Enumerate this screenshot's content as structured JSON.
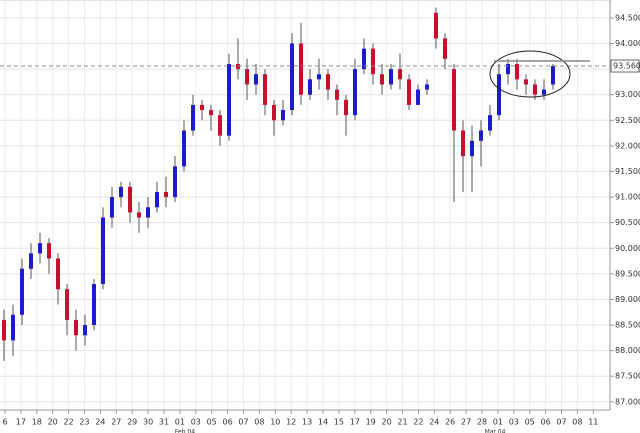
{
  "chart_data": {
    "type": "candlestick",
    "colors": {
      "up": "#1c1ccc",
      "down": "#c8102e",
      "wick": "#555555"
    },
    "grid": true,
    "ylim": [
      86.84,
      94.85
    ],
    "yticks": [
      {
        "value": 87.0,
        "label": "87.000"
      },
      {
        "value": 87.5,
        "label": "87.500"
      },
      {
        "value": 88.0,
        "label": "88.000"
      },
      {
        "value": 88.5,
        "label": "88.500"
      },
      {
        "value": 89.0,
        "label": "89.000"
      },
      {
        "value": 89.5,
        "label": "89.500"
      },
      {
        "value": 90.0,
        "label": "90.000"
      },
      {
        "value": 90.5,
        "label": "90.500"
      },
      {
        "value": 91.0,
        "label": "91.000"
      },
      {
        "value": 91.5,
        "label": "91.500"
      },
      {
        "value": 92.0,
        "label": "92.000"
      },
      {
        "value": 92.5,
        "label": "92.500"
      },
      {
        "value": 93.0,
        "label": "93.000"
      },
      {
        "value": 93.5,
        "label": "93.500"
      },
      {
        "value": 94.0,
        "label": "94.000"
      },
      {
        "value": 94.5,
        "label": "94.500"
      }
    ],
    "current_price": {
      "value": 93.56,
      "label": "93.560"
    },
    "xlabels": [
      "6",
      "17",
      "18",
      "20",
      "22",
      "23",
      "24",
      "27",
      "29",
      "30",
      "31",
      "01",
      "03",
      "05",
      "06",
      "07",
      "08",
      "10",
      "12",
      "13",
      "14",
      "15",
      "17",
      "19",
      "20",
      "21",
      "22",
      "24",
      "26",
      "27",
      "28",
      "01",
      "03",
      "05",
      "06",
      "07",
      "08",
      "11"
    ],
    "month_labels": [
      "Feb 04",
      "Mar 04"
    ],
    "series": {
      "open": [
        88.6,
        88.2,
        88.7,
        89.6,
        89.9,
        90.1,
        89.8,
        89.2,
        88.6,
        88.3,
        88.5,
        89.3,
        90.6,
        91.0,
        91.2,
        90.7,
        90.6,
        90.8,
        91.1,
        91.0,
        91.6,
        92.3,
        92.8,
        92.7,
        92.6,
        92.2,
        93.6,
        93.5,
        93.2,
        93.4,
        92.8,
        92.5,
        92.7,
        94.0,
        93.0,
        93.3,
        93.4,
        93.1,
        92.9,
        92.6,
        93.5,
        93.9,
        93.4,
        93.2,
        93.5,
        93.3,
        92.8,
        93.1,
        94.6,
        94.1,
        93.5,
        92.3,
        91.8,
        92.1,
        92.3,
        92.6,
        93.4,
        93.6,
        93.3,
        93.2,
        93.0,
        93.2
      ],
      "high": [
        88.8,
        88.9,
        89.8,
        90.1,
        90.3,
        90.2,
        89.9,
        89.3,
        88.8,
        88.7,
        89.4,
        90.8,
        91.2,
        91.3,
        91.3,
        90.9,
        91.0,
        91.3,
        91.4,
        91.8,
        92.5,
        93.0,
        92.9,
        92.8,
        92.7,
        93.8,
        94.1,
        93.7,
        93.6,
        93.5,
        92.9,
        92.9,
        94.2,
        94.4,
        93.5,
        93.7,
        93.5,
        93.2,
        93.0,
        93.7,
        94.1,
        94.0,
        93.6,
        93.6,
        93.8,
        93.4,
        93.2,
        93.3,
        94.7,
        94.2,
        93.6,
        92.5,
        92.4,
        92.5,
        92.8,
        93.6,
        93.7,
        93.7,
        93.4,
        93.3,
        93.3,
        93.6
      ],
      "low": [
        87.8,
        87.9,
        88.5,
        89.4,
        89.7,
        89.5,
        88.9,
        88.3,
        88.0,
        88.1,
        88.4,
        89.2,
        90.4,
        90.8,
        90.5,
        90.3,
        90.4,
        90.7,
        90.8,
        90.9,
        91.5,
        92.2,
        92.5,
        92.3,
        92.0,
        92.1,
        93.3,
        92.9,
        93.0,
        92.6,
        92.2,
        92.4,
        92.6,
        92.8,
        92.9,
        93.1,
        92.9,
        92.6,
        92.2,
        92.5,
        93.4,
        93.2,
        93.0,
        93.1,
        93.1,
        92.7,
        92.8,
        93.0,
        93.9,
        93.5,
        90.9,
        91.1,
        91.1,
        91.6,
        92.2,
        92.5,
        93.2,
        93.1,
        93.0,
        92.9,
        92.9,
        93.1
      ],
      "close": [
        88.2,
        88.7,
        89.6,
        89.9,
        90.1,
        89.8,
        89.2,
        88.6,
        88.3,
        88.5,
        89.3,
        90.6,
        91.0,
        91.2,
        90.7,
        90.6,
        90.8,
        91.1,
        91.0,
        91.6,
        92.3,
        92.8,
        92.7,
        92.6,
        92.2,
        93.6,
        93.5,
        93.2,
        93.4,
        92.8,
        92.5,
        92.7,
        94.0,
        93.0,
        93.3,
        93.4,
        93.1,
        92.9,
        92.6,
        93.5,
        93.9,
        93.4,
        93.2,
        93.5,
        93.3,
        92.8,
        93.1,
        93.2,
        94.1,
        93.7,
        92.3,
        91.8,
        92.1,
        92.3,
        92.6,
        93.4,
        93.6,
        93.3,
        93.2,
        93.0,
        93.1,
        93.56
      ]
    }
  }
}
